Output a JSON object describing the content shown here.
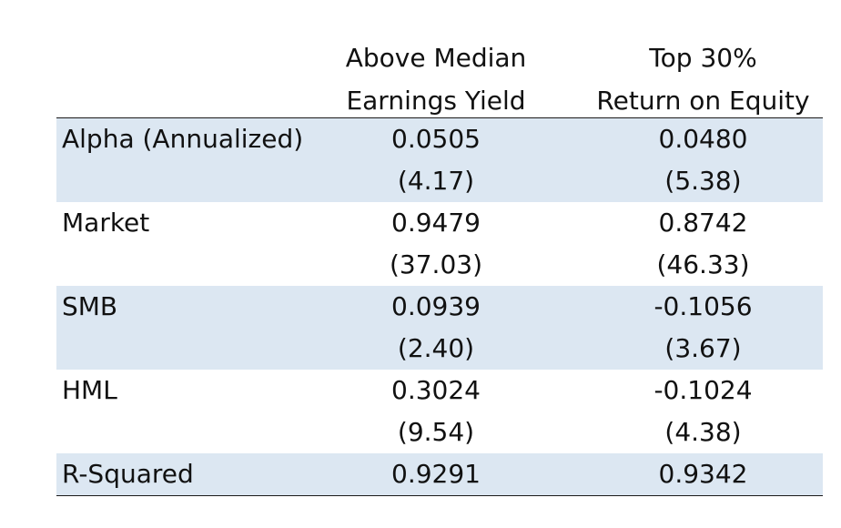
{
  "table": {
    "headers": [
      {
        "line1": "Above Median",
        "line2": "Earnings Yield"
      },
      {
        "line1": "Top 30%",
        "line2": "Return on Equity"
      }
    ],
    "rows": [
      {
        "label": "Alpha (Annualized)",
        "c1": "0.0505",
        "c2": "0.0480",
        "c1_t": "(4.17)",
        "c2_t": "(5.38)"
      },
      {
        "label": "Market",
        "c1": "0.9479",
        "c2": "0.8742",
        "c1_t": "(37.03)",
        "c2_t": "(46.33)"
      },
      {
        "label": "SMB",
        "c1": "0.0939",
        "c2": "-0.1056",
        "c1_t": "(2.40)",
        "c2_t": "(3.67)"
      },
      {
        "label": "HML",
        "c1": "0.3024",
        "c2": "-0.1024",
        "c1_t": "(9.54)",
        "c2_t": "(4.38)"
      },
      {
        "label": "R-Squared",
        "c1": "0.9291",
        "c2": "0.9342"
      }
    ],
    "colors": {
      "shaded_row": "#dce7f2",
      "rule": "#1a1a1a"
    }
  }
}
